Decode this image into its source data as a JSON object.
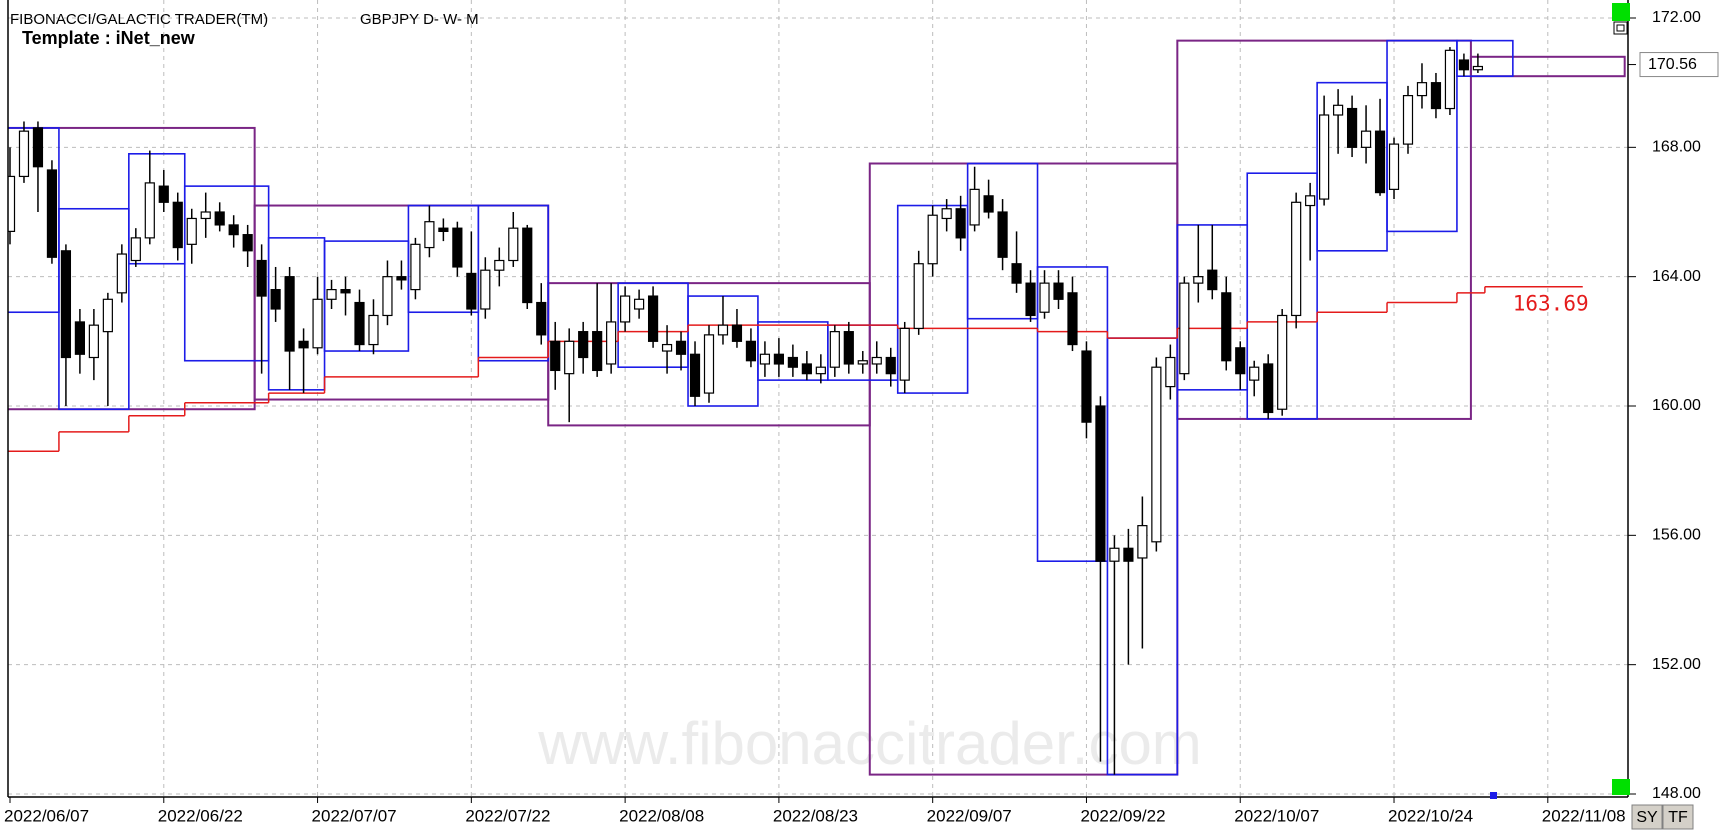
{
  "header": {
    "title": "FIBONACCI/GALACTIC TRADER(TM)",
    "symbol": "GBPJPY D- W- M",
    "template": "Template : iNet_new"
  },
  "watermark": "www.fibonaccitrader.com",
  "buttons": [
    "SY",
    "TF"
  ],
  "chart_data": {
    "type": "candlestick",
    "categories": [
      "2022/06/07",
      null,
      null,
      null,
      null,
      null,
      null,
      null,
      null,
      null,
      null,
      "2022/06/22",
      null,
      null,
      null,
      null,
      null,
      null,
      null,
      null,
      null,
      null,
      "2022/07/07",
      null,
      null,
      null,
      null,
      null,
      null,
      null,
      null,
      null,
      null,
      "2022/07/22",
      null,
      null,
      null,
      null,
      null,
      null,
      null,
      null,
      null,
      null,
      "2022/08/08",
      null,
      null,
      null,
      null,
      null,
      null,
      null,
      null,
      null,
      null,
      "2022/08/23",
      null,
      null,
      null,
      null,
      null,
      null,
      null,
      null,
      null,
      null,
      "2022/09/07",
      null,
      null,
      null,
      null,
      null,
      null,
      null,
      null,
      null,
      null,
      "2022/09/22",
      null,
      null,
      null,
      null,
      null,
      null,
      null,
      null,
      null,
      null,
      "2022/10/07",
      null,
      null,
      null,
      null,
      null,
      null,
      null,
      null,
      null,
      null,
      "2022/10/24",
      null,
      null,
      null,
      null,
      null,
      null,
      null,
      null,
      null,
      null,
      "2022/11/08",
      null,
      null,
      null,
      null,
      null
    ],
    "open": [
      165.4,
      167.1,
      168.6,
      167.3,
      164.8,
      162.6,
      161.5,
      162.3,
      163.5,
      164.5,
      165.2,
      166.8,
      166.3,
      165.0,
      165.8,
      166.0,
      165.6,
      165.3,
      164.5,
      163.6,
      164.0,
      162.0,
      161.8,
      163.3,
      163.6,
      163.2,
      161.9,
      162.8,
      164.0,
      163.6,
      164.9,
      165.5,
      165.5,
      164.1,
      163.0,
      164.2,
      164.5,
      165.5,
      163.2,
      162.0,
      161.0,
      162.3,
      162.3,
      161.3,
      162.6,
      163.0,
      163.4,
      161.7,
      162.0,
      161.6,
      160.4,
      162.2,
      162.5,
      162.0,
      161.3,
      161.6,
      161.5,
      161.3,
      161.0,
      161.2,
      162.3,
      161.3,
      161.3,
      161.5,
      160.8,
      162.4,
      164.4,
      165.8,
      166.1,
      165.6,
      166.5,
      166.0,
      164.4,
      163.8,
      162.9,
      163.8,
      163.5,
      161.7,
      160.0,
      155.2,
      155.6,
      155.3,
      155.8,
      160.6,
      161.0,
      163.8,
      164.2,
      163.5,
      161.8,
      160.8,
      161.3,
      159.9,
      162.8,
      166.2,
      166.4,
      169.0,
      169.2,
      168.0,
      168.5,
      166.7,
      168.1,
      169.6,
      170.0,
      169.2,
      170.7,
      170.4,
      null,
      null,
      null,
      null,
      null,
      null,
      null,
      null,
      null,
      null
    ],
    "high": [
      168.0,
      168.8,
      168.8,
      167.6,
      165.0,
      163.0,
      163.0,
      163.5,
      165.0,
      165.5,
      167.9,
      167.3,
      166.6,
      166.1,
      166.6,
      166.3,
      165.9,
      165.6,
      165.0,
      164.3,
      164.3,
      162.4,
      164.0,
      163.9,
      164.0,
      163.6,
      163.3,
      164.5,
      164.5,
      165.2,
      166.2,
      165.8,
      165.7,
      165.4,
      164.6,
      164.9,
      166.0,
      165.6,
      163.8,
      162.6,
      162.4,
      162.6,
      163.8,
      163.8,
      163.7,
      163.6,
      163.7,
      162.5,
      162.3,
      162.0,
      162.5,
      163.4,
      163.0,
      162.4,
      162.0,
      162.1,
      161.9,
      161.7,
      161.6,
      162.5,
      162.6,
      161.7,
      162.0,
      161.8,
      162.6,
      164.8,
      166.2,
      166.4,
      166.5,
      167.4,
      167.0,
      166.4,
      165.4,
      164.2,
      164.2,
      164.2,
      164.0,
      162.0,
      160.3,
      156.0,
      156.2,
      157.2,
      161.5,
      161.9,
      164.0,
      165.6,
      165.6,
      164.0,
      162.0,
      161.4,
      161.6,
      163.0,
      166.6,
      166.9,
      169.6,
      169.8,
      169.6,
      169.3,
      169.5,
      168.3,
      169.9,
      170.6,
      170.3,
      171.1,
      170.9,
      170.9,
      null,
      null,
      null,
      null,
      null,
      null,
      null,
      null,
      null,
      null
    ],
    "low": [
      165.0,
      166.9,
      166.0,
      164.4,
      160.0,
      161.0,
      160.8,
      160.0,
      163.2,
      164.3,
      165.0,
      166.0,
      164.5,
      164.4,
      165.2,
      165.4,
      164.9,
      164.3,
      161.0,
      162.6,
      160.5,
      160.4,
      161.6,
      163.0,
      162.8,
      161.7,
      161.6,
      162.5,
      163.6,
      163.3,
      164.6,
      165.1,
      164.0,
      162.8,
      162.7,
      163.7,
      164.3,
      163.0,
      161.9,
      160.5,
      159.5,
      161.0,
      160.9,
      161.0,
      162.3,
      162.7,
      161.8,
      161.0,
      161.1,
      160.0,
      160.1,
      161.9,
      161.8,
      161.2,
      160.9,
      160.9,
      160.9,
      160.8,
      160.7,
      160.9,
      161.0,
      161.0,
      161.0,
      160.6,
      160.4,
      162.2,
      164.0,
      165.4,
      164.8,
      165.4,
      165.8,
      164.2,
      163.5,
      162.6,
      162.7,
      163.0,
      161.7,
      159.0,
      149.0,
      148.6,
      152.0,
      152.5,
      155.5,
      160.2,
      160.8,
      163.2,
      163.3,
      161.1,
      160.5,
      160.3,
      159.6,
      159.7,
      162.4,
      164.5,
      166.2,
      167.8,
      167.7,
      167.5,
      166.5,
      166.4,
      167.8,
      169.2,
      168.9,
      169.0,
      170.2,
      170.3,
      null,
      null,
      null,
      null,
      null,
      null,
      null,
      null,
      null,
      null
    ],
    "close": [
      167.1,
      168.5,
      167.4,
      164.6,
      161.5,
      161.6,
      162.5,
      163.3,
      164.7,
      165.2,
      166.9,
      166.3,
      164.9,
      165.8,
      166.0,
      165.6,
      165.3,
      164.8,
      163.4,
      163.0,
      161.7,
      161.8,
      163.3,
      163.6,
      163.5,
      161.9,
      162.8,
      164.0,
      163.9,
      165.0,
      165.7,
      165.4,
      164.3,
      163.0,
      164.2,
      164.5,
      165.5,
      163.2,
      162.2,
      161.1,
      162.0,
      161.5,
      161.1,
      162.6,
      163.4,
      163.3,
      162.0,
      161.9,
      161.6,
      160.3,
      162.2,
      162.5,
      162.0,
      161.4,
      161.6,
      161.3,
      161.2,
      161.0,
      161.2,
      162.3,
      161.3,
      161.4,
      161.5,
      161.0,
      162.4,
      164.4,
      165.9,
      166.1,
      165.2,
      166.7,
      166.0,
      164.6,
      163.8,
      162.8,
      163.8,
      163.3,
      161.9,
      159.5,
      155.2,
      155.6,
      155.2,
      156.3,
      161.2,
      161.5,
      163.8,
      164.0,
      163.6,
      161.4,
      161.0,
      161.2,
      159.8,
      162.8,
      166.3,
      166.5,
      169.0,
      169.3,
      168.0,
      168.5,
      166.6,
      168.1,
      169.6,
      170.0,
      169.2,
      171.0,
      170.4,
      170.5,
      null,
      null,
      null,
      null,
      null,
      null,
      null,
      null,
      null,
      null
    ],
    "ylim": [
      148,
      172
    ],
    "yticks": [
      {
        "value": 148,
        "label": "148.00"
      },
      {
        "value": 152,
        "label": "152.00"
      },
      {
        "value": 156,
        "label": "156.00"
      },
      {
        "value": 160,
        "label": "160.00"
      },
      {
        "value": 164,
        "label": "164.00"
      },
      {
        "value": 168,
        "label": "168.00"
      },
      {
        "value": 172,
        "label": "172.00"
      }
    ],
    "grid": true,
    "last_price": {
      "value": 170.56,
      "label": "170.56"
    },
    "colors": {
      "up": "#ffffff",
      "down": "#000000",
      "monthly": "#7a2585",
      "weekly": "#1c1ce8",
      "stop": "#e41b1b"
    },
    "monthly_boxes": [
      {
        "start": 0,
        "end": 17,
        "high": 168.6,
        "low": 159.9
      },
      {
        "start": 18,
        "end": 38,
        "high": 166.2,
        "low": 160.2
      },
      {
        "start": 39,
        "end": 61,
        "high": 163.8,
        "low": 159.4
      },
      {
        "start": 62,
        "end": 83,
        "high": 167.5,
        "low": 148.6
      },
      {
        "start": 84,
        "end": 104,
        "high": 171.3,
        "low": 159.6
      },
      {
        "start": 105,
        "end": 115,
        "high": 170.8,
        "low": 170.2
      }
    ],
    "weekly_boxes": [
      {
        "start": 0,
        "end": 3,
        "high": 168.6,
        "low": 162.9
      },
      {
        "start": 4,
        "end": 8,
        "high": 166.1,
        "low": 159.9
      },
      {
        "start": 9,
        "end": 12,
        "high": 167.8,
        "low": 164.4
      },
      {
        "start": 13,
        "end": 18,
        "high": 166.8,
        "low": 161.4
      },
      {
        "start": 19,
        "end": 22,
        "high": 165.2,
        "low": 160.5
      },
      {
        "start": 23,
        "end": 28,
        "high": 165.1,
        "low": 161.7
      },
      {
        "start": 29,
        "end": 33,
        "high": 166.2,
        "low": 162.9
      },
      {
        "start": 34,
        "end": 38,
        "high": 166.2,
        "low": 161.4
      },
      {
        "start": 44,
        "end": 48,
        "high": 163.8,
        "low": 161.2
      },
      {
        "start": 49,
        "end": 53,
        "high": 163.4,
        "low": 160.0
      },
      {
        "start": 54,
        "end": 58,
        "high": 162.6,
        "low": 160.8
      },
      {
        "start": 59,
        "end": 63,
        "high": 162.5,
        "low": 160.8
      },
      {
        "start": 64,
        "end": 68,
        "high": 166.2,
        "low": 160.4
      },
      {
        "start": 69,
        "end": 73,
        "high": 167.5,
        "low": 162.7
      },
      {
        "start": 74,
        "end": 78,
        "high": 164.3,
        "low": 155.2
      },
      {
        "start": 79,
        "end": 83,
        "high": 162.1,
        "low": 148.6
      },
      {
        "start": 84,
        "end": 88,
        "high": 165.6,
        "low": 160.5
      },
      {
        "start": 89,
        "end": 93,
        "high": 167.2,
        "low": 159.6
      },
      {
        "start": 94,
        "end": 98,
        "high": 170.0,
        "low": 164.8
      },
      {
        "start": 99,
        "end": 103,
        "high": 171.3,
        "low": 165.4
      },
      {
        "start": 104,
        "end": 107,
        "high": 171.3,
        "low": 170.2
      }
    ],
    "stop_line": [
      {
        "start": 0,
        "end": 3,
        "value": 158.6
      },
      {
        "start": 4,
        "end": 8,
        "value": 159.2
      },
      {
        "start": 9,
        "end": 12,
        "value": 159.7
      },
      {
        "start": 13,
        "end": 18,
        "value": 160.1
      },
      {
        "start": 19,
        "end": 22,
        "value": 160.4
      },
      {
        "start": 23,
        "end": 33,
        "value": 160.9
      },
      {
        "start": 34,
        "end": 38,
        "value": 161.5
      },
      {
        "start": 39,
        "end": 43,
        "value": 162.0
      },
      {
        "start": 44,
        "end": 48,
        "value": 162.3
      },
      {
        "start": 49,
        "end": 63,
        "value": 162.5
      },
      {
        "start": 64,
        "end": 73,
        "value": 162.4
      },
      {
        "start": 74,
        "end": 78,
        "value": 162.3
      },
      {
        "start": 79,
        "end": 83,
        "value": 162.1
      },
      {
        "start": 84,
        "end": 88,
        "value": 162.4
      },
      {
        "start": 89,
        "end": 93,
        "value": 162.6
      },
      {
        "start": 94,
        "end": 98,
        "value": 162.9
      },
      {
        "start": 99,
        "end": 103,
        "value": 163.2
      },
      {
        "start": 104,
        "end": 105,
        "value": 163.5
      },
      {
        "start": 106,
        "end": 112,
        "value": 163.69,
        "label": "163.69"
      }
    ]
  }
}
